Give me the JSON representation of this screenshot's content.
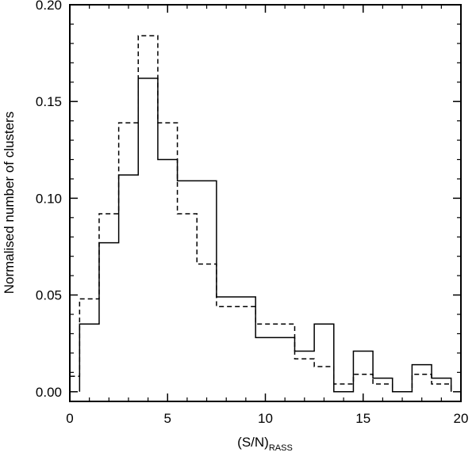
{
  "chart_data": {
    "type": "histogram",
    "xlabel": "(S/N)",
    "xlabel_subscript": "RASS",
    "ylabel": "Normalised number of clusters",
    "xlim": [
      0,
      20
    ],
    "ylim": [
      -0.005,
      0.2
    ],
    "xticks": [
      0,
      5,
      10,
      15,
      20
    ],
    "xtick_labels": [
      "0",
      "5",
      "10",
      "15",
      "20"
    ],
    "yticks": [
      0.0,
      0.05,
      0.1,
      0.15,
      0.2
    ],
    "ytick_labels": [
      "0.00",
      "0.05",
      "0.10",
      "0.15",
      "0.20"
    ],
    "grid": false,
    "series": [
      {
        "style": "solid",
        "edges": [
          0.5,
          1.5,
          2.5,
          3.5,
          4.5,
          5.5,
          7.5,
          9.5,
          11.5,
          12.5,
          13.5,
          14.5,
          15.5,
          16.5,
          17.5,
          18.5,
          19.5
        ],
        "values": [
          0.035,
          0.077,
          0.112,
          0.162,
          0.12,
          0.109,
          0.049,
          0.028,
          0.021,
          0.035,
          0.0,
          0.021,
          0.007,
          0.0,
          0.014,
          0.007
        ]
      },
      {
        "style": "dashed",
        "edges": [
          0.0,
          0.5,
          1.5,
          2.5,
          3.5,
          4.5,
          5.5,
          6.5,
          7.5,
          9.5,
          11.5,
          12.5,
          13.5,
          14.5,
          15.5,
          16.5,
          17.5,
          18.5,
          19.5
        ],
        "values": [
          0.008,
          0.048,
          0.092,
          0.139,
          0.184,
          0.139,
          0.092,
          0.066,
          0.044,
          0.035,
          0.017,
          0.013,
          0.004,
          0.009,
          0.004,
          0.0,
          0.009,
          0.004
        ]
      }
    ]
  }
}
